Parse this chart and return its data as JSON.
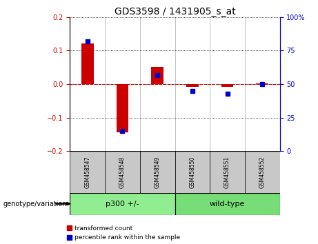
{
  "title": "GDS3598 / 1431905_s_at",
  "samples": [
    "GSM458547",
    "GSM458548",
    "GSM458549",
    "GSM458550",
    "GSM458551",
    "GSM458552"
  ],
  "transformed_count": [
    0.122,
    -0.143,
    0.051,
    -0.008,
    -0.008,
    0.002
  ],
  "percentile_rank": [
    82,
    15,
    57,
    45,
    43,
    50
  ],
  "ylim_left": [
    -0.2,
    0.2
  ],
  "ylim_right": [
    0,
    100
  ],
  "yticks_left": [
    -0.2,
    -0.1,
    0,
    0.1,
    0.2
  ],
  "yticks_right": [
    0,
    25,
    50,
    75,
    100
  ],
  "ytick_labels_right": [
    "0",
    "25",
    "50",
    "75",
    "100%"
  ],
  "red_color": "#CC0000",
  "blue_color": "#0000CC",
  "groups": [
    {
      "label": "p300 +/-",
      "start": 0,
      "end": 3,
      "color": "#90EE90"
    },
    {
      "label": "wild-type",
      "start": 3,
      "end": 6,
      "color": "#77DD77"
    }
  ],
  "sample_row_color": "#C8C8C8",
  "bar_width": 0.35,
  "blue_marker_size": 5,
  "legend_items": [
    "transformed count",
    "percentile rank within the sample"
  ],
  "legend_colors": [
    "#CC0000",
    "#0000CC"
  ],
  "genotype_label": "genotype/variation"
}
